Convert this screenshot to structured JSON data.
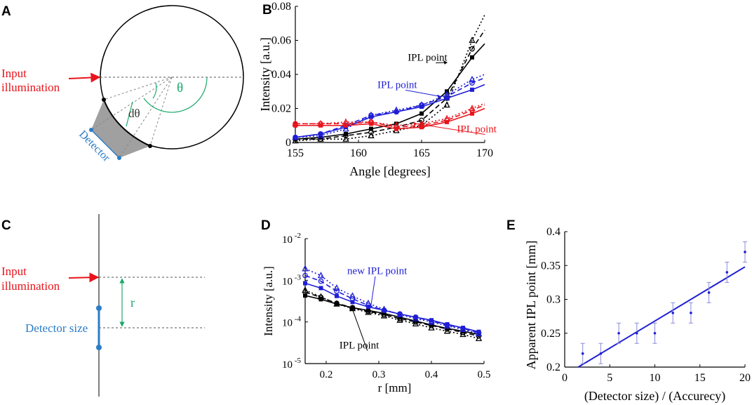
{
  "colors": {
    "black": "#000000",
    "blue": "#1f1fd6",
    "red": "#e8141c",
    "green": "#1aa86a",
    "detector": "#2b7cc6",
    "gray": "#a9a9a9"
  },
  "panels": {
    "A": {
      "label": "A",
      "input_line1": "Input",
      "input_line2": "illumination",
      "theta": "θ",
      "dtheta": "dθ",
      "detector": "Detector"
    },
    "C": {
      "label": "C",
      "input_line1": "Input",
      "input_line2": "illumination",
      "r": "r",
      "detector_size": "Detector size"
    }
  },
  "chart_data": [
    {
      "panel": "B",
      "type": "line",
      "xlabel": "Angle [degrees]",
      "ylabel": "Intensity [a.u.]",
      "xlim": [
        155,
        170
      ],
      "ylim": [
        0,
        0.08
      ],
      "xticks": [
        155,
        160,
        165,
        170
      ],
      "yticks": [
        0,
        0.02,
        0.04,
        0.06,
        0.08
      ],
      "ytick_labels": [
        "0",
        "0.02",
        "0.04",
        "0.06",
        "0.08"
      ],
      "x": [
        155,
        157,
        159,
        161,
        163,
        165,
        167,
        169,
        170
      ],
      "series": [
        {
          "name": "black-solid",
          "color": "#000000",
          "dash": "solid",
          "marker": "square",
          "values": [
            0.002,
            0.003,
            0.005,
            0.008,
            0.011,
            0.017,
            0.03,
            0.05,
            0.058
          ]
        },
        {
          "name": "black-dashed",
          "color": "#000000",
          "dash": "dashed",
          "marker": "circle",
          "values": [
            0.002,
            0.002,
            0.004,
            0.006,
            0.009,
            0.013,
            0.026,
            0.055,
            0.066
          ]
        },
        {
          "name": "black-dotted",
          "color": "#000000",
          "dash": "dotted",
          "marker": "triangle",
          "values": [
            0.001,
            0.002,
            0.002,
            0.004,
            0.007,
            0.01,
            0.022,
            0.06,
            0.075
          ]
        },
        {
          "name": "blue-solid",
          "color": "#1f1fd6",
          "dash": "solid",
          "marker": "square",
          "values": [
            0.003,
            0.005,
            0.009,
            0.015,
            0.018,
            0.021,
            0.026,
            0.031,
            0.034
          ]
        },
        {
          "name": "blue-dashed",
          "color": "#1f1fd6",
          "dash": "dashed",
          "marker": "circle",
          "values": [
            0.003,
            0.005,
            0.01,
            0.016,
            0.018,
            0.022,
            0.027,
            0.035,
            0.038
          ]
        },
        {
          "name": "blue-dotted",
          "color": "#1f1fd6",
          "dash": "dotted",
          "marker": "triangle",
          "values": [
            0.003,
            0.004,
            0.008,
            0.016,
            0.019,
            0.022,
            0.028,
            0.037,
            0.04
          ]
        },
        {
          "name": "red-solid",
          "color": "#e8141c",
          "dash": "solid",
          "marker": "square",
          "values": [
            0.01,
            0.01,
            0.01,
            0.011,
            0.008,
            0.009,
            0.012,
            0.017,
            0.02
          ]
        },
        {
          "name": "red-dashed",
          "color": "#e8141c",
          "dash": "dashed",
          "marker": "circle",
          "values": [
            0.011,
            0.011,
            0.011,
            0.012,
            0.009,
            0.01,
            0.013,
            0.019,
            0.022
          ]
        },
        {
          "name": "red-dotted",
          "color": "#e8141c",
          "dash": "dotted",
          "marker": "triangle",
          "values": [
            0.011,
            0.011,
            0.012,
            0.012,
            0.01,
            0.011,
            0.014,
            0.02,
            0.023
          ]
        }
      ],
      "annotations": [
        {
          "text": "IPL point",
          "color": "#000000",
          "anchor": [
            167,
            0.047
          ],
          "tx": 163.9,
          "ty": 0.048
        },
        {
          "text": "IPL point",
          "color": "#1f1fd6",
          "anchor": [
            166.5,
            0.027
          ],
          "tx": 161.5,
          "ty": 0.032
        },
        {
          "text": "IPL point",
          "color": "#e8141c",
          "anchor": [
            164.6,
            0.011
          ],
          "tx": 167.8,
          "ty": 0.006
        }
      ]
    },
    {
      "panel": "D",
      "type": "line",
      "yscale": "log",
      "xlabel": "r [mm]",
      "ylabel": "Intensity [a.u.]",
      "xlim": [
        0.16,
        0.5
      ],
      "ylim_exp": [
        -5,
        -2
      ],
      "xticks": [
        0.2,
        0.3,
        0.4,
        0.5
      ],
      "ytick_exps": [
        -5,
        -4,
        -3,
        -2
      ],
      "ytick_base": "10",
      "x": [
        0.16,
        0.19,
        0.22,
        0.25,
        0.28,
        0.31,
        0.34,
        0.37,
        0.4,
        0.43,
        0.46,
        0.49
      ],
      "series": [
        {
          "name": "black-solid",
          "color": "#000000",
          "dash": "solid",
          "marker": "square",
          "values": [
            0.00043,
            0.00035,
            0.00027,
            0.00022,
            0.00019,
            0.00016,
            0.00013,
            0.000105,
            8.5e-05,
            7e-05,
            6e-05,
            5e-05
          ]
        },
        {
          "name": "black-dashed",
          "color": "#000000",
          "dash": "dashed",
          "marker": "circle",
          "values": [
            0.00052,
            0.00039,
            0.00028,
            0.00022,
            0.00018,
            0.00015,
            0.00012,
            0.0001,
            8.2e-05,
            6.8e-05,
            5.6e-05,
            4.6e-05
          ]
        },
        {
          "name": "black-dotted",
          "color": "#000000",
          "dash": "dotted",
          "marker": "triangle",
          "values": [
            0.00058,
            0.0004,
            0.00027,
            0.00021,
            0.00017,
            0.00014,
            0.00011,
            9e-05,
            7.2e-05,
            6e-05,
            5e-05,
            4e-05
          ]
        },
        {
          "name": "blue-solid",
          "color": "#1f1fd6",
          "dash": "solid",
          "marker": "square",
          "values": [
            0.00085,
            0.00065,
            0.00042,
            0.0003,
            0.00023,
            0.00019,
            0.000155,
            0.00013,
            0.00011,
            8.8e-05,
            7.2e-05,
            5.8e-05
          ]
        },
        {
          "name": "blue-dashed",
          "color": "#1f1fd6",
          "dash": "dashed",
          "marker": "circle",
          "values": [
            0.0013,
            0.00095,
            0.00055,
            0.00036,
            0.00025,
            0.00019,
            0.000155,
            0.00013,
            0.000105,
            8.5e-05,
            7e-05,
            5.5e-05
          ]
        },
        {
          "name": "blue-dotted",
          "color": "#1f1fd6",
          "dash": "dotted",
          "marker": "triangle",
          "values": [
            0.0019,
            0.0013,
            0.00065,
            0.00042,
            0.00028,
            0.0002,
            0.00015,
            0.00012,
            0.0001,
            8e-05,
            6.6e-05,
            5.2e-05
          ]
        }
      ],
      "annotations": [
        {
          "text": "new IPL point",
          "color": "#1f1fd6",
          "anchor": [
            0.285,
            0.00024
          ],
          "tx": 0.24,
          "ty": 0.0014
        },
        {
          "text": "IPL point",
          "color": "#000000",
          "anchor": [
            0.25,
            0.0002
          ],
          "tx": 0.225,
          "ty": 2.3e-05
        }
      ]
    },
    {
      "panel": "E",
      "type": "scatter",
      "xlabel": "(Detector size) / (Accurecy)",
      "ylabel": "Apparent IPL point [mm]",
      "xlim": [
        0,
        20
      ],
      "ylim": [
        0.2,
        0.4
      ],
      "xticks": [
        0,
        5,
        10,
        15,
        20
      ],
      "yticks": [
        0.2,
        0.25,
        0.3,
        0.35,
        0.4
      ],
      "ytick_labels": [
        "0.2",
        "0.25",
        "0.3",
        "0.35",
        "0.4"
      ],
      "x": [
        2,
        4,
        6,
        8,
        10,
        12,
        14,
        16,
        18,
        20
      ],
      "values": [
        0.22,
        0.22,
        0.25,
        0.25,
        0.25,
        0.28,
        0.28,
        0.31,
        0.34,
        0.37
      ],
      "errors": [
        0.015,
        0.015,
        0.015,
        0.015,
        0.015,
        0.015,
        0.015,
        0.015,
        0.015,
        0.015
      ],
      "fit": {
        "x": [
          1.5,
          20
        ],
        "y": [
          0.2,
          0.348
        ]
      },
      "color": "#1f1fd6"
    }
  ]
}
